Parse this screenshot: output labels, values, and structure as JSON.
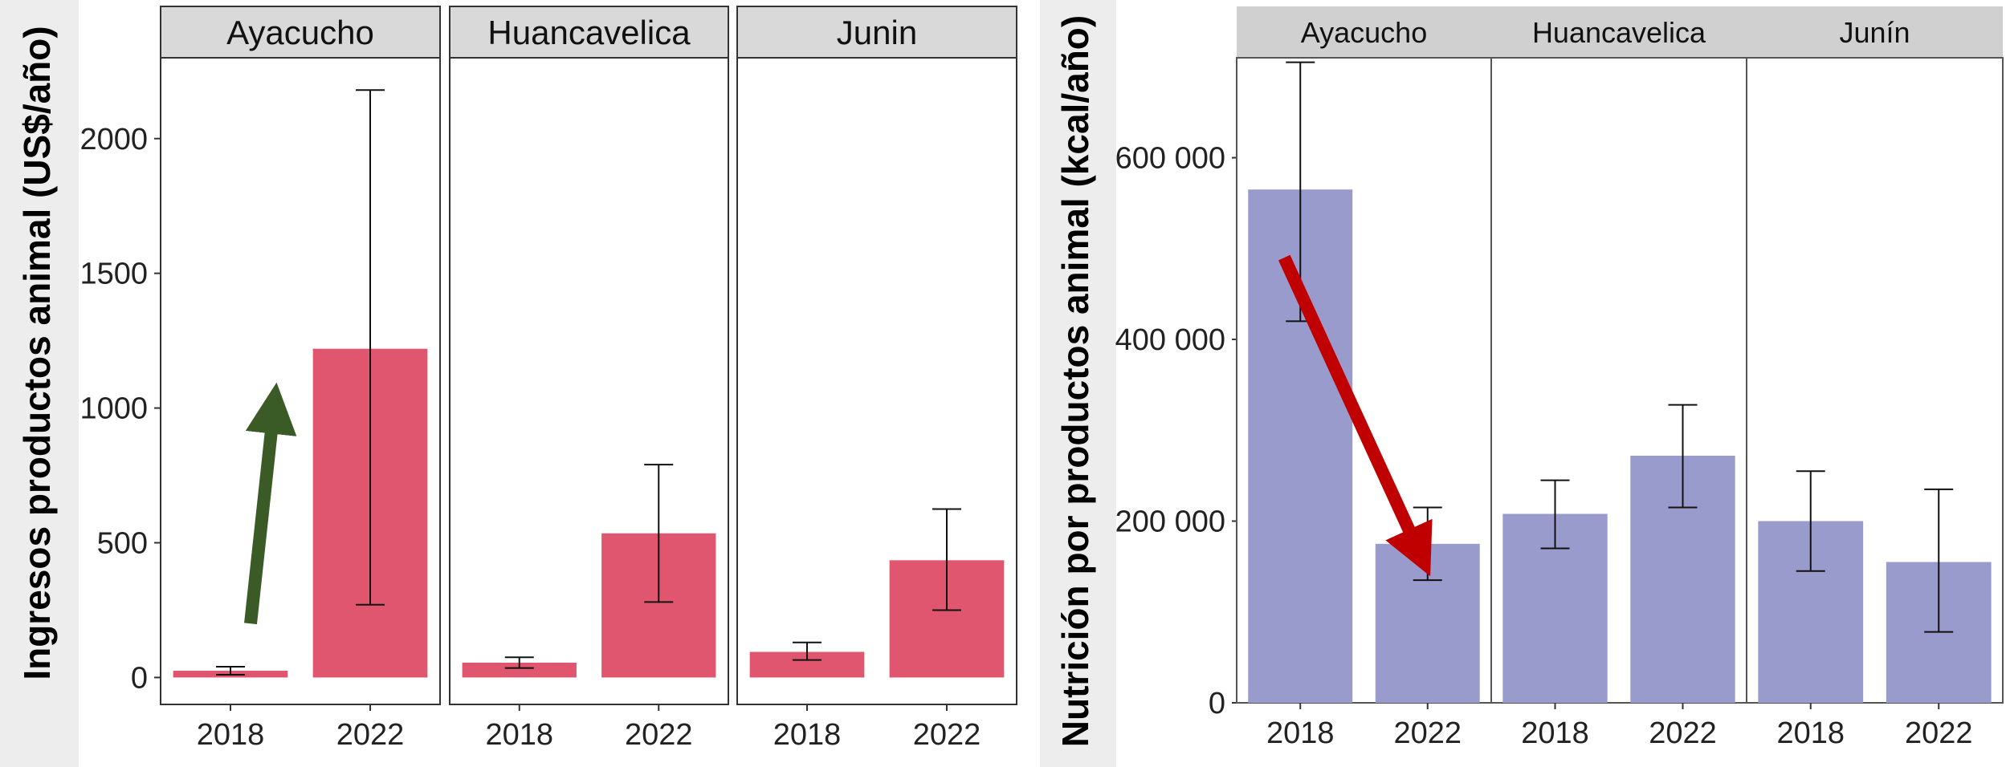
{
  "chart_data": [
    {
      "type": "bar",
      "ylabel": "Ingresos productos animal (US$/año)",
      "ylim": [
        -100,
        2300
      ],
      "yticks": [
        0,
        500,
        1000,
        1500,
        2000
      ],
      "ytick_labels": [
        "0",
        "500",
        "1000",
        "1500",
        "2000"
      ],
      "categories": [
        "2018",
        "2022"
      ],
      "bar_color": "#e0566f",
      "arrow_color": "#3a5a26",
      "panels": [
        {
          "name": "Ayacucho",
          "values": [
            25,
            1220
          ],
          "err_low": [
            10,
            270
          ],
          "err_high": [
            40,
            2180
          ]
        },
        {
          "name": "Huancavelica",
          "values": [
            55,
            535
          ],
          "err_low": [
            35,
            280
          ],
          "err_high": [
            75,
            790
          ]
        },
        {
          "name": "Junin",
          "values": [
            95,
            435
          ],
          "err_low": [
            65,
            250
          ],
          "err_high": [
            130,
            625
          ]
        }
      ],
      "arrow": {
        "panel": 0,
        "from": {
          "x": "2018",
          "y": 200
        },
        "to": {
          "x": "2022",
          "y": 1000
        }
      }
    },
    {
      "type": "bar",
      "ylabel": "Nutrición por productos animal (kcal/año)",
      "ylim": [
        0,
        710000
      ],
      "yticks": [
        0,
        200000,
        400000,
        600000
      ],
      "ytick_labels": [
        "0",
        "200 000",
        "400 000",
        "600 000"
      ],
      "categories": [
        "2018",
        "2022"
      ],
      "bar_color": "#9a9bcd",
      "arrow_color": "#c00000",
      "panels": [
        {
          "name": "Ayacucho",
          "values": [
            565000,
            175000
          ],
          "err_low": [
            420000,
            135000
          ],
          "err_high": [
            705000,
            215000
          ]
        },
        {
          "name": "Huancavelica",
          "values": [
            208000,
            272000
          ],
          "err_low": [
            170000,
            215000
          ],
          "err_high": [
            245000,
            328000
          ]
        },
        {
          "name": "Junín",
          "values": [
            200000,
            155000
          ],
          "err_low": [
            145000,
            78000
          ],
          "err_high": [
            255000,
            235000
          ]
        }
      ],
      "arrow": {
        "panel": 0,
        "from": {
          "x": "2018",
          "y": 490000
        },
        "to": {
          "x": "2022",
          "y": 165000
        }
      }
    }
  ]
}
